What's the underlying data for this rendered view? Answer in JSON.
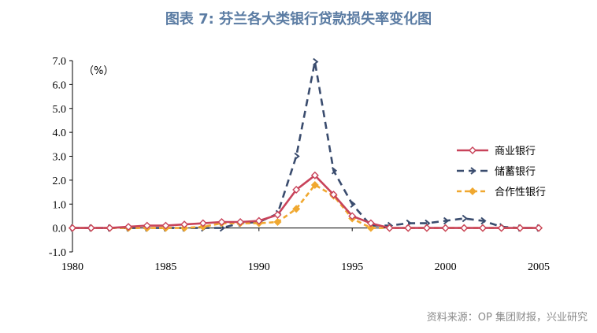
{
  "page": {
    "title": "图表 7: 芬兰各大类银行贷款损失率变化图",
    "source": "资料来源：OP 集团财报，兴业研究"
  },
  "chart_data": {
    "type": "line",
    "unit_label": "（%）",
    "x": [
      1980,
      1981,
      1982,
      1983,
      1984,
      1985,
      1986,
      1987,
      1988,
      1989,
      1990,
      1991,
      1992,
      1993,
      1994,
      1995,
      1996,
      1997,
      1998,
      1999,
      2000,
      2001,
      2002,
      2003,
      2004,
      2005
    ],
    "xticks": [
      "1980",
      "1985",
      "1990",
      "1995",
      "2000",
      "2005"
    ],
    "yticks": [
      "-1.0",
      "0.0",
      "1.0",
      "2.0",
      "3.0",
      "4.0",
      "5.0",
      "6.0",
      "7.0"
    ],
    "xlim": [
      1980,
      2005
    ],
    "ylim": [
      -1,
      7
    ],
    "series": [
      {
        "name": "商业银行",
        "color": "#c8435a",
        "dash": "solid",
        "marker": "diamond",
        "values": [
          0,
          0,
          0,
          0.05,
          0.1,
          0.1,
          0.15,
          0.2,
          0.25,
          0.25,
          0.3,
          0.55,
          1.6,
          2.2,
          1.4,
          0.5,
          0.2,
          0,
          0,
          0,
          0,
          0,
          0,
          0,
          0,
          0
        ]
      },
      {
        "name": "储蓄银行",
        "color": "#3a4c6e",
        "dash": "dashed",
        "marker": "arrow",
        "values": [
          0,
          0,
          0,
          0,
          0,
          0,
          0,
          0,
          0,
          0.2,
          0.25,
          0.6,
          3.0,
          6.95,
          2.4,
          1.0,
          0.1,
          0.1,
          0.2,
          0.2,
          0.3,
          0.4,
          0.3,
          0.05,
          0,
          0
        ]
      },
      {
        "name": "合作性银行",
        "color": "#f0a830",
        "dash": "dashed",
        "marker": "diamond",
        "values": [
          0,
          0,
          0,
          0,
          0,
          0,
          0,
          0.05,
          0.2,
          0.2,
          0.2,
          0.25,
          0.8,
          1.8,
          1.35,
          0.4,
          0,
          0,
          0,
          0,
          0,
          0,
          0,
          0,
          0,
          0
        ]
      }
    ],
    "legend_position": "right"
  }
}
